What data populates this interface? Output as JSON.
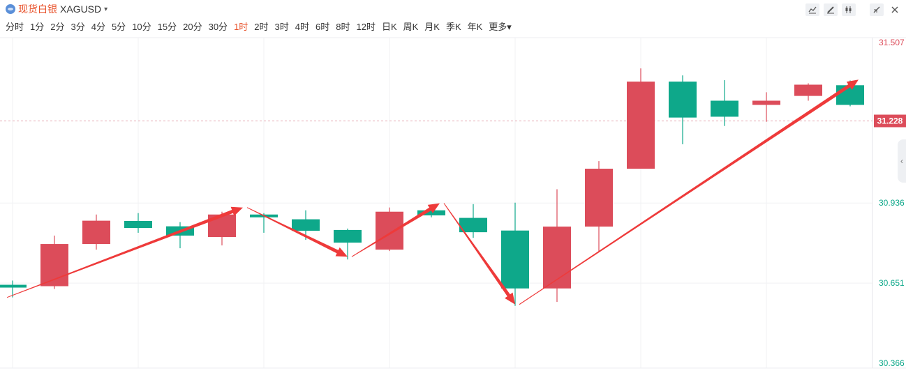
{
  "header": {
    "symbol_name": "现货白银",
    "symbol_code": "XAGUSD",
    "tool_icons": [
      "line-chart-icon",
      "pen-icon",
      "candle-icon",
      "collapse-icon",
      "close-icon"
    ]
  },
  "periods": [
    "分时",
    "1分",
    "2分",
    "3分",
    "4分",
    "5分",
    "10分",
    "15分",
    "20分",
    "30分",
    "1时",
    "2时",
    "3时",
    "4时",
    "6时",
    "8时",
    "12时",
    "日K",
    "周K",
    "月K",
    "季K",
    "年K",
    "更多"
  ],
  "active_period": "1时",
  "colors": {
    "up": "#dc4c5a",
    "down": "#0ea88a",
    "accent": "#e8512a",
    "arrow": "#ee3a3a"
  },
  "chart_data": {
    "type": "candlestick",
    "price_axis": {
      "ticks": [
        31.507,
        30.936,
        30.651,
        30.366
      ],
      "current": 31.228,
      "ylim": [
        30.366,
        31.507
      ]
    },
    "candles": [
      {
        "o": 30.645,
        "c": 30.635,
        "h": 30.66,
        "l": 30.6
      },
      {
        "o": 30.64,
        "c": 30.79,
        "h": 30.82,
        "l": 30.63
      },
      {
        "o": 30.79,
        "c": 30.873,
        "h": 30.895,
        "l": 30.77
      },
      {
        "o": 30.872,
        "c": 30.847,
        "h": 30.9,
        "l": 30.83
      },
      {
        "o": 30.853,
        "c": 30.82,
        "h": 30.868,
        "l": 30.775
      },
      {
        "o": 30.815,
        "c": 30.895,
        "h": 30.905,
        "l": 30.785
      },
      {
        "o": 30.895,
        "c": 30.885,
        "h": 30.9,
        "l": 30.83
      },
      {
        "o": 30.878,
        "c": 30.837,
        "h": 30.91,
        "l": 30.805
      },
      {
        "o": 30.84,
        "c": 30.795,
        "h": 30.845,
        "l": 30.735
      },
      {
        "o": 30.77,
        "c": 30.905,
        "h": 30.92,
        "l": 30.765
      },
      {
        "o": 30.91,
        "c": 30.892,
        "h": 30.925,
        "l": 30.885
      },
      {
        "o": 30.883,
        "c": 30.832,
        "h": 30.932,
        "l": 30.812
      },
      {
        "o": 30.838,
        "c": 30.632,
        "h": 30.937,
        "l": 30.57
      },
      {
        "o": 30.632,
        "c": 30.852,
        "h": 30.985,
        "l": 30.584
      },
      {
        "o": 30.852,
        "c": 31.058,
        "h": 31.085,
        "l": 30.762
      },
      {
        "o": 31.058,
        "c": 31.368,
        "h": 31.415,
        "l": null
      },
      {
        "o": 31.368,
        "c": 31.24,
        "h": 31.39,
        "l": 31.145
      },
      {
        "o": 31.3,
        "c": 31.243,
        "h": 31.373,
        "l": 31.21
      },
      {
        "o": 31.285,
        "c": 31.3,
        "h": 31.33,
        "l": 31.225
      },
      {
        "o": 31.317,
        "c": 31.357,
        "h": 31.362,
        "l": 31.3
      },
      {
        "o": 31.355,
        "c": 31.285,
        "h": 31.372,
        "l": 31.28
      }
    ],
    "arrows": [
      {
        "from": [
          0,
          30.6
        ],
        "to": [
          5.5,
          30.92
        ]
      },
      {
        "from": [
          5.6,
          30.92
        ],
        "to": [
          8.0,
          30.745
        ]
      },
      {
        "from": [
          8.1,
          30.745
        ],
        "to": [
          10.2,
          30.935
        ]
      },
      {
        "from": [
          10.3,
          30.935
        ],
        "to": [
          12.0,
          30.575
        ]
      },
      {
        "from": [
          12.1,
          30.575
        ],
        "to": [
          20.2,
          31.375
        ]
      }
    ]
  }
}
